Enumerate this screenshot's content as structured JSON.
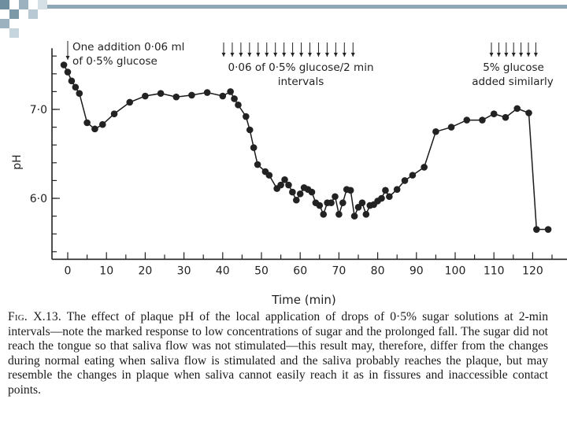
{
  "chart_data": {
    "type": "line",
    "xlabel": "Time (min)",
    "ylabel": "pH",
    "xlim": [
      -2,
      128
    ],
    "ylim": [
      5.35,
      7.6
    ],
    "x_ticks": [
      0,
      10,
      20,
      30,
      40,
      50,
      60,
      70,
      80,
      90,
      100,
      110,
      120
    ],
    "x_tick_labels": [
      "0",
      "10",
      "20",
      "30",
      "40",
      "50",
      "60",
      "70",
      "80",
      "90",
      "100",
      "110",
      "120"
    ],
    "y_ticks": [
      7.0,
      6.0
    ],
    "y_tick_labels": [
      "7·0",
      "6·0"
    ],
    "grid": false,
    "series": [
      {
        "x": [
          -1,
          0,
          1,
          2,
          3,
          5,
          7,
          9,
          12,
          16,
          20,
          24,
          28,
          32,
          36,
          40,
          42,
          43,
          44,
          46,
          47,
          48,
          49,
          51,
          52,
          54,
          55,
          56,
          57,
          58,
          59,
          60,
          61,
          62,
          63,
          64,
          65,
          66,
          67,
          68,
          69,
          70,
          71,
          72,
          73,
          74,
          75,
          76,
          77,
          78,
          79,
          80,
          81,
          82,
          83,
          85,
          87,
          89,
          92,
          95,
          99,
          103,
          107,
          110,
          113,
          116,
          119,
          121,
          124
        ],
        "values": [
          7.5,
          7.42,
          7.32,
          7.25,
          7.18,
          6.85,
          6.78,
          6.83,
          6.95,
          7.08,
          7.15,
          7.18,
          7.14,
          7.16,
          7.19,
          7.15,
          7.2,
          7.12,
          7.05,
          6.92,
          6.77,
          6.57,
          6.38,
          6.3,
          6.26,
          6.11,
          6.15,
          6.21,
          6.15,
          6.07,
          5.98,
          6.05,
          6.12,
          6.1,
          6.07,
          5.95,
          5.92,
          5.82,
          5.95,
          5.95,
          6.02,
          5.82,
          5.95,
          6.1,
          6.09,
          5.8,
          5.9,
          5.95,
          5.82,
          5.92,
          5.93,
          5.97,
          6.0,
          6.09,
          6.02,
          6.1,
          6.2,
          6.26,
          6.35,
          6.75,
          6.8,
          6.88,
          6.88,
          6.95,
          6.91,
          7.01,
          6.96,
          5.65,
          5.65
        ]
      }
    ],
    "annotations": [
      {
        "line1": "One addition 0·06 ml",
        "line2": "of 0·5% glucose",
        "arrow_count": 1
      },
      {
        "line1": "0·06 of 0·5% glucose/2 min",
        "line2": "intervals",
        "arrow_count": 16
      },
      {
        "line1": "5% glucose",
        "line2": "added similarly",
        "arrow_count": 7
      }
    ]
  },
  "caption": {
    "lead": "Fig. X.13.",
    "text": "The effect of plaque pH of the local application of drops of 0·5% sugar solutions at 2-min intervals—note the marked response to low concentrations of sugar and the prolonged fall. The sugar did not reach the tongue so that saliva flow was not stimulated—this result may, therefore, differ from the changes during normal eating when saliva flow is stimulated and the saliva probably reaches the plaque, but may resemble the changes in plaque when saliva cannot easily reach it as in fissures and inaccessible contact points."
  },
  "colors": {
    "accent": "#7c99a8",
    "ink": "#1a1a1a"
  }
}
